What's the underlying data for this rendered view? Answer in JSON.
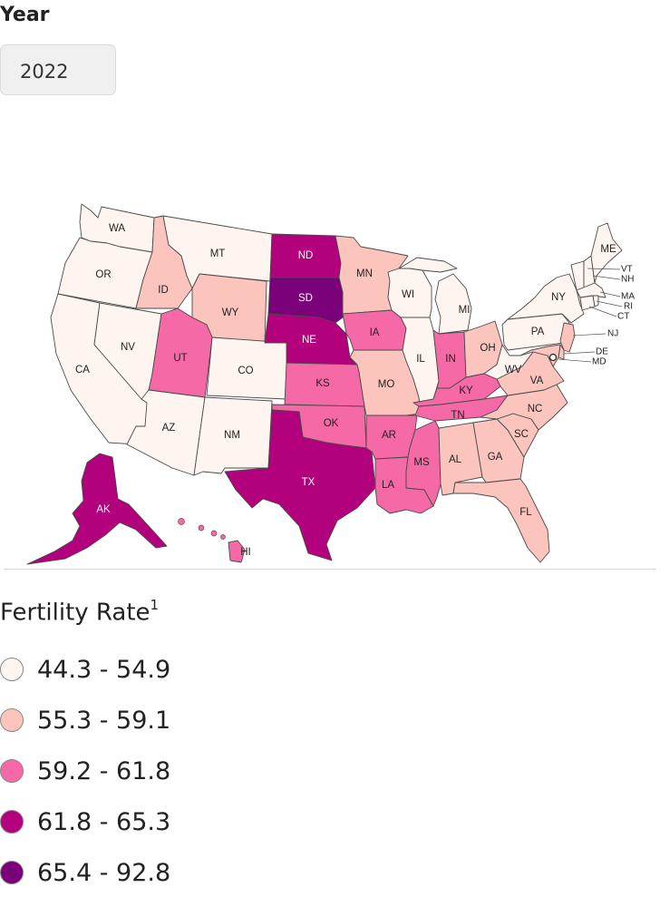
{
  "filter": {
    "label": "Year",
    "value": "2022"
  },
  "map": {
    "states": {
      "WA": 0,
      "OR": 0,
      "CA": 0,
      "NV": 0,
      "ID": 1,
      "MT": 0,
      "WY": 1,
      "UT": 2,
      "AZ": 0,
      "CO": 0,
      "NM": 0,
      "ND": 3,
      "SD": 4,
      "NE": 3,
      "KS": 2,
      "OK": 2,
      "TX": 3,
      "MN": 1,
      "IA": 2,
      "MO": 1,
      "AR": 2,
      "LA": 2,
      "WI": 0,
      "IL": 0,
      "MI": 0,
      "IN": 2,
      "OH": 1,
      "KY": 2,
      "TN": 2,
      "MS": 2,
      "AL": 1,
      "GA": 1,
      "FL": 1,
      "SC": 1,
      "NC": 1,
      "VA": 1,
      "WV": 0,
      "PA": 0,
      "NY": 0,
      "NJ": 1,
      "ME": 0,
      "VT": 0,
      "NH": 0,
      "MA": 0,
      "RI": 0,
      "CT": 0,
      "DE": 1,
      "MD": 1,
      "AK": 3,
      "HI": 2
    }
  },
  "legend": {
    "title": "Fertility Rate",
    "footnote": "1",
    "items": [
      {
        "label": "44.3 - 54.9",
        "color": "#fff5f0"
      },
      {
        "label": "55.3 - 59.1",
        "color": "#fbc4bd"
      },
      {
        "label": "59.2 - 61.8",
        "color": "#f569a6"
      },
      {
        "label": "61.8 - 65.3",
        "color": "#b3007d"
      },
      {
        "label": "65.4 - 92.8",
        "color": "#7a0179"
      }
    ]
  }
}
